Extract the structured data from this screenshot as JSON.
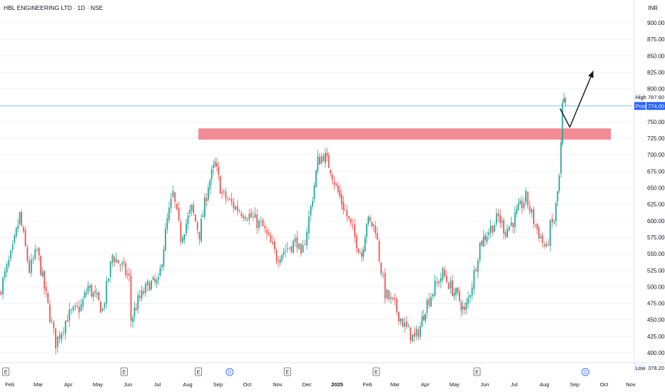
{
  "header": {
    "title": "HBL ENGINEERING LTD · 1D · NSE",
    "currency": "INR"
  },
  "colors": {
    "up": "#26a69a",
    "down": "#ef5350",
    "zone": "#f28b95",
    "price_line": "#7fc8ea",
    "post_tag": "#2962ff"
  },
  "chart_data": {
    "type": "candlestick",
    "title": "HBL ENGINEERING LTD · 1D · NSE",
    "currency": "INR",
    "y_ticks": [
      "900.00",
      "875.00",
      "850.00",
      "825.00",
      "800.00",
      "750.00",
      "725.00",
      "700.00",
      "675.00",
      "650.00",
      "625.00",
      "600.00",
      "575.00",
      "550.00",
      "525.00",
      "500.00",
      "475.00",
      "450.00",
      "425.00",
      "400.00"
    ],
    "x_ticks": [
      "Feb",
      "Mar",
      "Apr",
      "May",
      "Jun",
      "Jul",
      "Aug",
      "Sep",
      "Oct",
      "Nov",
      "Dec",
      "2025",
      "Feb",
      "Mar",
      "Apr",
      "May",
      "Jun",
      "Jul",
      "Aug",
      "Sep",
      "Oct",
      "Nov"
    ],
    "ylim": [
      395,
      920
    ],
    "price_tags": [
      {
        "label": "High",
        "value": "787.60",
        "price": 787.6
      },
      {
        "label": "Post",
        "value": "774.00",
        "price": 774.0
      },
      {
        "label": "Low",
        "value": "378.20",
        "price": 378.2
      }
    ],
    "event_markers": [
      {
        "symbol": "E",
        "kind": "earnings",
        "date": "2024-01-28"
      },
      {
        "symbol": "E",
        "kind": "earnings",
        "date": "2024-05-28"
      },
      {
        "symbol": "E",
        "kind": "earnings",
        "date": "2024-08-12"
      },
      {
        "symbol": "D",
        "kind": "dividend",
        "date": "2024-09-13"
      },
      {
        "symbol": "E",
        "kind": "earnings",
        "date": "2024-11-11"
      },
      {
        "symbol": "E",
        "kind": "earnings",
        "date": "2025-02-10"
      },
      {
        "symbol": "E",
        "kind": "earnings",
        "date": "2025-05-24"
      },
      {
        "symbol": "D",
        "kind": "dividend",
        "date": "2025-09-12"
      }
    ],
    "resistance_zone": {
      "from": "2024-08-12",
      "to": "2025-10-08",
      "low": 723,
      "high": 740
    },
    "projection": [
      {
        "date": "2025-08-17",
        "price": 770
      },
      {
        "date": "2025-08-27",
        "price": 742
      },
      {
        "date": "2025-09-20",
        "price": 827
      }
    ],
    "price_path": [
      {
        "date": "2024-01-22",
        "price": 490
      },
      {
        "date": "2024-02-05",
        "price": 555
      },
      {
        "date": "2024-02-12",
        "price": 608
      },
      {
        "date": "2024-02-22",
        "price": 525
      },
      {
        "date": "2024-03-01",
        "price": 555
      },
      {
        "date": "2024-03-12",
        "price": 470
      },
      {
        "date": "2024-03-20",
        "price": 415
      },
      {
        "date": "2024-04-01",
        "price": 455
      },
      {
        "date": "2024-04-15",
        "price": 470
      },
      {
        "date": "2024-04-22",
        "price": 500
      },
      {
        "date": "2024-05-01",
        "price": 480
      },
      {
        "date": "2024-05-07",
        "price": 465
      },
      {
        "date": "2024-05-17",
        "price": 548
      },
      {
        "date": "2024-05-27",
        "price": 530
      },
      {
        "date": "2024-06-03",
        "price": 512
      },
      {
        "date": "2024-06-05",
        "price": 450
      },
      {
        "date": "2024-06-12",
        "price": 478
      },
      {
        "date": "2024-06-24",
        "price": 505
      },
      {
        "date": "2024-07-03",
        "price": 505
      },
      {
        "date": "2024-07-12",
        "price": 600
      },
      {
        "date": "2024-07-18",
        "price": 640
      },
      {
        "date": "2024-07-26",
        "price": 575
      },
      {
        "date": "2024-08-06",
        "price": 618
      },
      {
        "date": "2024-08-14",
        "price": 580
      },
      {
        "date": "2024-08-23",
        "price": 655
      },
      {
        "date": "2024-08-30",
        "price": 685
      },
      {
        "date": "2024-09-06",
        "price": 640
      },
      {
        "date": "2024-09-20",
        "price": 620
      },
      {
        "date": "2024-10-04",
        "price": 608
      },
      {
        "date": "2024-10-18",
        "price": 590
      },
      {
        "date": "2024-11-01",
        "price": 545
      },
      {
        "date": "2024-11-08",
        "price": 555
      },
      {
        "date": "2024-11-22",
        "price": 570
      },
      {
        "date": "2024-11-26",
        "price": 540
      },
      {
        "date": "2024-12-06",
        "price": 620
      },
      {
        "date": "2024-12-13",
        "price": 690
      },
      {
        "date": "2024-12-19",
        "price": 700
      },
      {
        "date": "2024-12-26",
        "price": 680
      },
      {
        "date": "2025-01-01",
        "price": 650
      },
      {
        "date": "2025-01-10",
        "price": 615
      },
      {
        "date": "2025-01-20",
        "price": 575
      },
      {
        "date": "2025-01-27",
        "price": 548
      },
      {
        "date": "2025-02-01",
        "price": 600
      },
      {
        "date": "2025-02-10",
        "price": 590
      },
      {
        "date": "2025-02-14",
        "price": 545
      },
      {
        "date": "2025-02-20",
        "price": 490
      },
      {
        "date": "2025-03-02",
        "price": 470
      },
      {
        "date": "2025-03-12",
        "price": 440
      },
      {
        "date": "2025-03-22",
        "price": 420
      },
      {
        "date": "2025-03-28",
        "price": 440
      },
      {
        "date": "2025-04-02",
        "price": 470
      },
      {
        "date": "2025-04-12",
        "price": 500
      },
      {
        "date": "2025-04-20",
        "price": 520
      },
      {
        "date": "2025-04-28",
        "price": 500
      },
      {
        "date": "2025-05-07",
        "price": 480
      },
      {
        "date": "2025-05-12",
        "price": 460
      },
      {
        "date": "2025-05-20",
        "price": 505
      },
      {
        "date": "2025-05-28",
        "price": 565
      },
      {
        "date": "2025-06-06",
        "price": 585
      },
      {
        "date": "2025-06-16",
        "price": 605
      },
      {
        "date": "2025-06-23",
        "price": 585
      },
      {
        "date": "2025-07-01",
        "price": 600
      },
      {
        "date": "2025-07-08",
        "price": 620
      },
      {
        "date": "2025-07-14",
        "price": 635
      },
      {
        "date": "2025-07-22",
        "price": 600
      },
      {
        "date": "2025-07-29",
        "price": 575
      },
      {
        "date": "2025-08-04",
        "price": 555
      },
      {
        "date": "2025-08-08",
        "price": 590
      },
      {
        "date": "2025-08-12",
        "price": 600
      },
      {
        "date": "2025-08-17",
        "price": 665
      },
      {
        "date": "2025-08-19",
        "price": 712
      },
      {
        "date": "2025-08-20",
        "price": 772
      },
      {
        "date": "2025-08-22",
        "price": 776
      },
      {
        "date": "2025-08-23",
        "price": 774
      }
    ]
  }
}
